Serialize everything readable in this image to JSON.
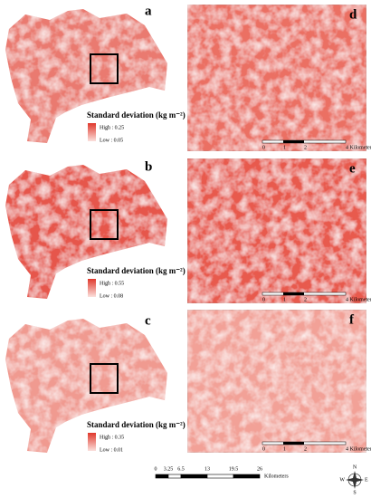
{
  "panels": [
    {
      "map_label": "a",
      "legend": {
        "title": "Standard deviation (kg m⁻²)",
        "high": "High : 0.25",
        "low": "Low : 0.05"
      },
      "zoom_label": "d",
      "zoom_scale": [
        "0",
        "1",
        "2",
        "4 Kilometers"
      ]
    },
    {
      "map_label": "b",
      "legend": {
        "title": "Standard deviation (kg m⁻²)",
        "high": "High : 0.55",
        "low": "Low : 0.08"
      },
      "zoom_label": "e",
      "zoom_scale": [
        "0",
        "1",
        "2",
        "4 Kilometers"
      ]
    },
    {
      "map_label": "c",
      "legend": {
        "title": "Standard deviation (kg m⁻²)",
        "high": "High : 0.35",
        "low": "Low : 0.01"
      },
      "zoom_label": "f",
      "zoom_scale": [
        "0",
        "1",
        "2",
        "4 Kilometers"
      ]
    }
  ],
  "scale_bar": {
    "ticks": [
      "0",
      "3.25",
      "6.5",
      "13",
      "19.5",
      "26"
    ],
    "unit": "Kilometers"
  },
  "compass": {
    "n": "N",
    "s": "S",
    "e": "E",
    "w": "W"
  }
}
